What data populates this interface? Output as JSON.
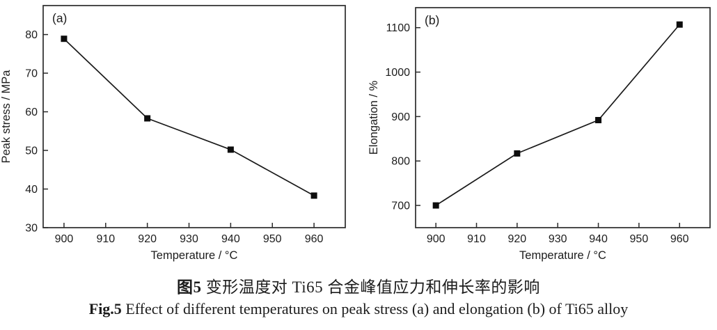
{
  "caption": {
    "zh_prefix": "图5",
    "zh_text": "变形温度对 Ti65 合金峰值应力和伸长率的影响",
    "en_prefix": "Fig.5",
    "en_text": "Effect of different temperatures on peak stress (a) and elongation (b) of Ti65 alloy"
  },
  "colors": {
    "ink": "#1c1c1c",
    "axis": "#2b2b2b",
    "series": "#1a1a1a",
    "marker": "#0d0d0d",
    "background": "#ffffff"
  },
  "chart_data": [
    {
      "type": "line",
      "panel_label": "(a)",
      "x": [
        900,
        920,
        940,
        960
      ],
      "values": [
        78.9,
        58.3,
        50.2,
        38.3
      ],
      "series_name": "Peak stress",
      "xlabel": "Temperature / °C",
      "ylabel": "Peak stress / MPa",
      "xlim": [
        895,
        967.5
      ],
      "ylim": [
        30,
        87.5
      ],
      "xticks": [
        900,
        910,
        920,
        930,
        940,
        950,
        960
      ],
      "yticks": [
        30,
        40,
        50,
        60,
        70,
        80
      ],
      "grid": false,
      "legend": "none",
      "marker": "filled-square"
    },
    {
      "type": "line",
      "panel_label": "(b)",
      "x": [
        900,
        920,
        940,
        960
      ],
      "values": [
        700,
        817,
        892,
        1107
      ],
      "series_name": "Elongation",
      "xlabel": "Temperature / °C",
      "ylabel": "Elongation / %",
      "xlim": [
        895,
        967.5
      ],
      "ylim": [
        650,
        1145
      ],
      "xticks": [
        900,
        910,
        920,
        930,
        940,
        950,
        960
      ],
      "yticks": [
        700,
        800,
        900,
        1000,
        1100
      ],
      "grid": false,
      "legend": "none",
      "marker": "filled-square"
    }
  ]
}
